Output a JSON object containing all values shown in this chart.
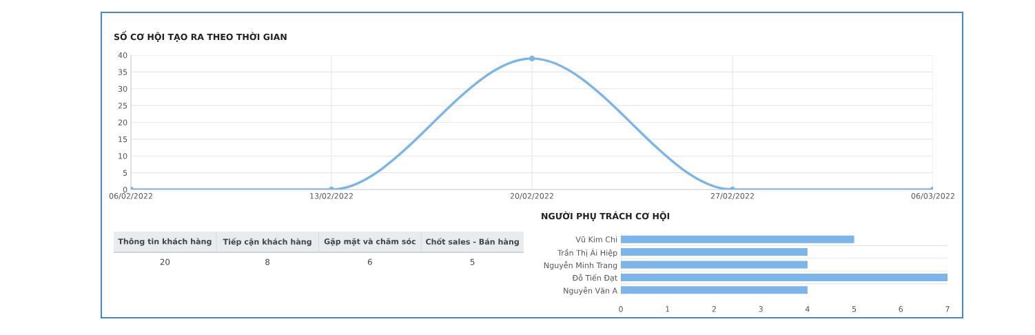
{
  "chart_data": [
    {
      "type": "line",
      "title": "SỐ CƠ HỘI TẠO RA THEO THỜI GIAN",
      "x": [
        "2022-02-06",
        "2022-02-13",
        "2022-02-20",
        "2022-02-27",
        "2022-03-06"
      ],
      "series": [
        {
          "color": "#7cb5ec",
          "values": [
            0,
            0,
            39,
            0,
            0
          ]
        }
      ],
      "xlim": [
        "2022-02-06",
        "2022-03-06"
      ],
      "xticks": [
        {
          "value": "2022-02-06",
          "label": "06/02/2022"
        },
        {
          "value": "2022-02-13",
          "label": "13/02/2022"
        },
        {
          "value": "2022-02-20",
          "label": "20/02/2022"
        },
        {
          "value": "2022-02-27",
          "label": "27/02/2022"
        },
        {
          "value": "2022-03-06",
          "label": "06/03/2022"
        }
      ],
      "ylim": [
        0,
        40
      ],
      "yticks": [
        0,
        5,
        10,
        15,
        20,
        25,
        30,
        35,
        40
      ],
      "grid": true,
      "marker": "circle",
      "line_style": "solid"
    },
    {
      "type": "other",
      "categories": [
        "Thông tin khách hàng",
        "Tiếp cận khách hàng",
        "Gặp mặt và chăm sóc",
        "Chốt sales - Bán hàng"
      ],
      "values": [
        20,
        8,
        6,
        5
      ],
      "data_labels": true
    },
    {
      "type": "bar",
      "title": "NGƯỜI PHỤ TRÁCH CƠ HỘI",
      "orientation": "horizontal",
      "categories": [
        "Vũ Kim Chi",
        "Trần Thị Ái Hiệp",
        "Nguyễn Minh Trang",
        "Đỗ Tiến Đạt",
        "Nguyễn Văn A"
      ],
      "series": [
        {
          "color": "#7cb5ec",
          "values": [
            5,
            4,
            4,
            7,
            4
          ]
        }
      ],
      "xlim": [
        0,
        7
      ],
      "xticks": [
        0,
        1,
        2,
        3,
        4,
        5,
        6,
        7
      ],
      "grid": "y"
    }
  ]
}
